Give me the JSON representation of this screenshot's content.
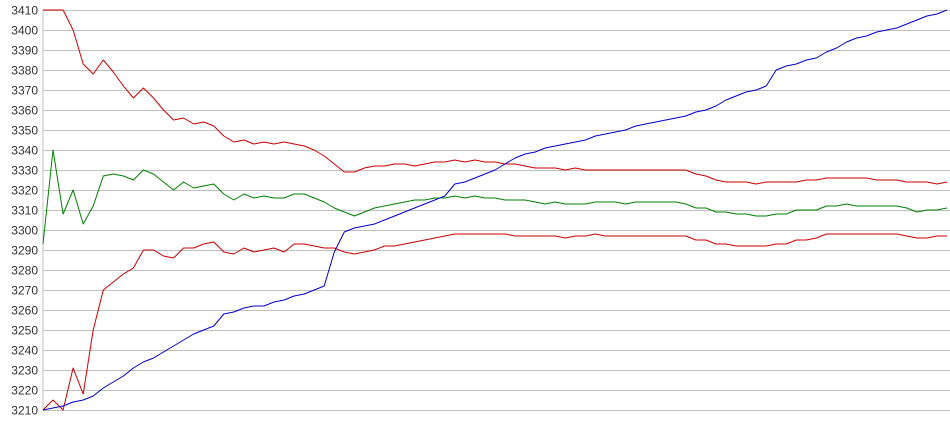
{
  "chart_data": {
    "type": "line",
    "title": "",
    "xlabel": "",
    "ylabel": "",
    "ylim": [
      3210,
      3410
    ],
    "yticks": [
      3210,
      3220,
      3230,
      3240,
      3250,
      3260,
      3270,
      3280,
      3290,
      3300,
      3310,
      3320,
      3330,
      3340,
      3350,
      3360,
      3370,
      3380,
      3390,
      3400,
      3410
    ],
    "grid": true,
    "legend": "none",
    "x_sampling": "uniform samples, no x-axis labels shown",
    "series": [
      {
        "color": "#cc0000",
        "values": [
          3410,
          3410,
          3410,
          3400,
          3383,
          3378,
          3385,
          3379,
          3372,
          3366,
          3371,
          3366,
          3360,
          3355,
          3356,
          3353,
          3354,
          3352,
          3347,
          3344,
          3345,
          3343,
          3344,
          3343,
          3344,
          3343,
          3342,
          3340,
          3337,
          3333,
          3329,
          3329,
          3331,
          3332,
          3332,
          3333,
          3333,
          3332,
          3333,
          3334,
          3334,
          3335,
          3334,
          3335,
          3334,
          3334,
          3333,
          3333,
          3332,
          3331,
          3331,
          3331,
          3330,
          3331,
          3330,
          3330,
          3330,
          3330,
          3330,
          3330,
          3330,
          3330,
          3330,
          3330,
          3330,
          3328,
          3327,
          3325,
          3324,
          3324,
          3324,
          3323,
          3324,
          3324,
          3324,
          3324,
          3325,
          3325,
          3326,
          3326,
          3326,
          3326,
          3326,
          3325,
          3325,
          3325,
          3324,
          3324,
          3324,
          3323,
          3324
        ]
      },
      {
        "color": "#008000",
        "values": [
          3293,
          3340,
          3308,
          3320,
          3303,
          3312,
          3327,
          3328,
          3327,
          3325,
          3330,
          3328,
          3324,
          3320,
          3324,
          3321,
          3322,
          3323,
          3318,
          3315,
          3318,
          3316,
          3317,
          3316,
          3316,
          3318,
          3318,
          3316,
          3314,
          3311,
          3309,
          3307,
          3309,
          3311,
          3312,
          3313,
          3314,
          3315,
          3315,
          3316,
          3316,
          3317,
          3316,
          3317,
          3316,
          3316,
          3315,
          3315,
          3315,
          3314,
          3313,
          3314,
          3313,
          3313,
          3313,
          3314,
          3314,
          3314,
          3313,
          3314,
          3314,
          3314,
          3314,
          3314,
          3313,
          3311,
          3311,
          3309,
          3309,
          3308,
          3308,
          3307,
          3307,
          3308,
          3308,
          3310,
          3310,
          3310,
          3312,
          3312,
          3313,
          3312,
          3312,
          3312,
          3312,
          3312,
          3311,
          3309,
          3310,
          3310,
          3311
        ]
      },
      {
        "color": "#cc0000",
        "values": [
          3210,
          3215,
          3210,
          3231,
          3218,
          3250,
          3270,
          3274,
          3278,
          3281,
          3290,
          3290,
          3287,
          3286,
          3291,
          3291,
          3293,
          3294,
          3289,
          3288,
          3291,
          3289,
          3290,
          3291,
          3289,
          3293,
          3293,
          3292,
          3291,
          3291,
          3289,
          3288,
          3289,
          3290,
          3292,
          3292,
          3293,
          3294,
          3295,
          3296,
          3297,
          3298,
          3298,
          3298,
          3298,
          3298,
          3298,
          3297,
          3297,
          3297,
          3297,
          3297,
          3296,
          3297,
          3297,
          3298,
          3297,
          3297,
          3297,
          3297,
          3297,
          3297,
          3297,
          3297,
          3297,
          3295,
          3295,
          3293,
          3293,
          3292,
          3292,
          3292,
          3292,
          3293,
          3293,
          3295,
          3295,
          3296,
          3298,
          3298,
          3298,
          3298,
          3298,
          3298,
          3298,
          3298,
          3297,
          3296,
          3296,
          3297,
          3297
        ]
      },
      {
        "color": "#0000cc",
        "values": [
          3210,
          3211,
          3212,
          3214,
          3215,
          3217,
          3221,
          3224,
          3227,
          3231,
          3234,
          3236,
          3239,
          3242,
          3245,
          3248,
          3250,
          3252,
          3258,
          3259,
          3261,
          3262,
          3262,
          3264,
          3265,
          3267,
          3268,
          3270,
          3272,
          3289,
          3299,
          3301,
          3302,
          3303,
          3305,
          3307,
          3309,
          3311,
          3313,
          3315,
          3317,
          3323,
          3324,
          3326,
          3328,
          3330,
          3333,
          3336,
          3338,
          3339,
          3341,
          3342,
          3343,
          3344,
          3345,
          3347,
          3348,
          3349,
          3350,
          3352,
          3353,
          3354,
          3355,
          3356,
          3357,
          3359,
          3360,
          3362,
          3365,
          3367,
          3369,
          3370,
          3372,
          3380,
          3382,
          3383,
          3385,
          3386,
          3389,
          3391,
          3394,
          3396,
          3397,
          3399,
          3400,
          3401,
          3403,
          3405,
          3407,
          3408,
          3410
        ]
      }
    ],
    "colors": {
      "grid": "#c0c0c0",
      "axis_text": "#333333"
    }
  }
}
